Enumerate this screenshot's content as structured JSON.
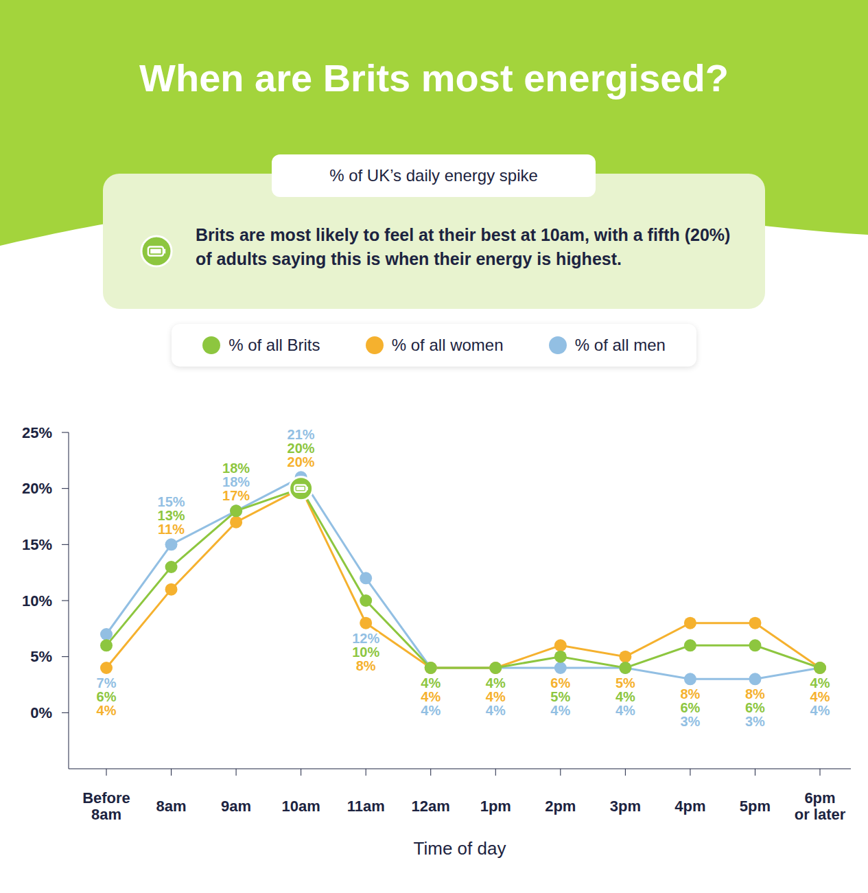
{
  "chart_data": {
    "type": "line",
    "title": "When are Brits most energised?",
    "subtitle": "% of UK’s daily energy spike",
    "annotations": [
      "Brits are most likely to feel at their best at 10am, with a fifth (20%) of adults saying this is when their energy is highest."
    ],
    "xlabel": "Time of day",
    "categories": [
      "Before 8am",
      "8am",
      "9am",
      "10am",
      "11am",
      "12am",
      "1pm",
      "2pm",
      "3pm",
      "4pm",
      "5pm",
      "6pm or later"
    ],
    "series": [
      {
        "name": "% of all Brits",
        "color": "#8dc63f",
        "values": [
          6,
          13,
          18,
          20,
          10,
          4,
          4,
          5,
          4,
          6,
          6,
          4
        ],
        "value_labels": [
          "6%",
          "13%",
          "18%",
          "20%",
          "10%",
          "4%",
          "4%",
          "5%",
          "4%",
          "6%",
          "6%",
          "4%"
        ]
      },
      {
        "name": "% of all women",
        "color": "#f5b12e",
        "values": [
          4,
          11,
          17,
          20,
          8,
          4,
          4,
          6,
          5,
          8,
          8,
          4
        ],
        "value_labels": [
          "4%",
          "11%",
          "17%",
          "20%",
          "8%",
          "4%",
          "4%",
          "6%",
          "5%",
          "8%",
          "8%",
          "4%"
        ]
      },
      {
        "name": "% of all men",
        "color": "#92bfe3",
        "values": [
          7,
          15,
          18,
          21,
          12,
          4,
          4,
          4,
          4,
          3,
          3,
          4
        ],
        "value_labels": [
          "7%",
          "15%",
          "18%",
          "21%",
          "12%",
          "4%",
          "4%",
          "4%",
          "4%",
          "3%",
          "3%",
          "4%"
        ]
      }
    ],
    "ylim": [
      -5,
      25
    ],
    "yticks": [
      {
        "value": 0,
        "label": "0%"
      },
      {
        "value": 5,
        "label": "5%"
      },
      {
        "value": 10,
        "label": "10%"
      },
      {
        "value": 15,
        "label": "15%"
      },
      {
        "value": 20,
        "label": "20%"
      },
      {
        "value": 25,
        "label": "25%"
      }
    ],
    "grid": false,
    "legend": "top",
    "data_labels": true,
    "marker": "circle"
  }
}
